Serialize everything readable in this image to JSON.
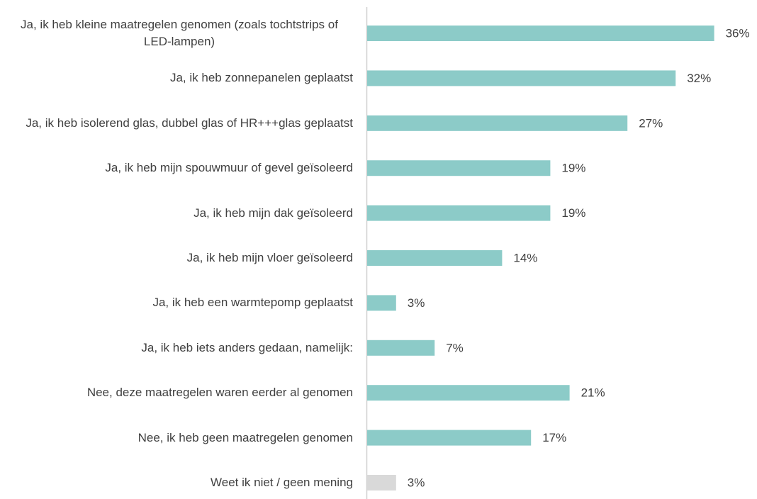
{
  "chart_data": {
    "type": "bar",
    "orientation": "horizontal",
    "categories": [
      "Ja, ik heb kleine maatregelen genomen (zoals tochtstrips of LED-lampen)",
      "Ja, ik heb zonnepanelen geplaatst",
      "Ja, ik heb isolerend glas, dubbel glas of HR+++glas geplaatst",
      "Ja, ik heb mijn spouwmuur of gevel geïsoleerd",
      "Ja, ik heb mijn dak geïsoleerd",
      "Ja, ik heb mijn vloer geïsoleerd",
      "Ja, ik heb een warmtepomp geplaatst",
      "Ja, ik heb iets anders gedaan, namelijk:",
      "Nee, deze maatregelen waren eerder al genomen",
      "Nee, ik heb geen maatregelen genomen",
      "Weet ik niet / geen mening"
    ],
    "values": [
      36,
      32,
      27,
      19,
      19,
      14,
      3,
      7,
      21,
      17,
      3
    ],
    "value_labels": [
      "36%",
      "32%",
      "27%",
      "19%",
      "19%",
      "14%",
      "3%",
      "7%",
      "21%",
      "17%",
      "3%"
    ],
    "colors": [
      "#8ccbc8",
      "#8ccbc8",
      "#8ccbc8",
      "#8ccbc8",
      "#8ccbc8",
      "#8ccbc8",
      "#8ccbc8",
      "#8ccbc8",
      "#8ccbc8",
      "#8ccbc8",
      "#d9d9d9"
    ],
    "xlim": [
      0,
      40
    ]
  }
}
